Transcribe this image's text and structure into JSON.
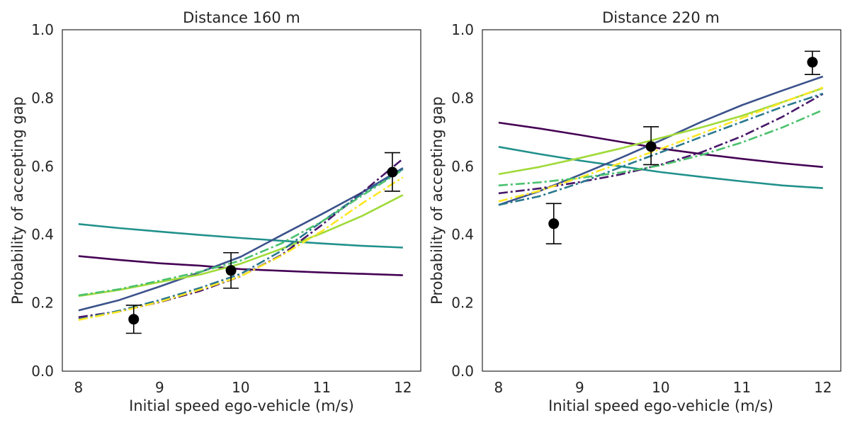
{
  "chart_data": [
    {
      "type": "line",
      "title": "Distance 160 m",
      "xlabel": "Initial speed ego-vehicle (m/s)",
      "ylabel": "Probability of accepting gap",
      "xlim": [
        7.8,
        12.22
      ],
      "ylim": [
        0.0,
        1.0
      ],
      "xticks": [
        "8",
        "9",
        "10",
        "11",
        "12"
      ],
      "yticks": [
        "0.0",
        "0.2",
        "0.4",
        "0.6",
        "0.8",
        "1.0"
      ],
      "grid": false,
      "legend": "none",
      "x": [
        8,
        8.5,
        9,
        9.5,
        10,
        10.5,
        11,
        11.5,
        12
      ],
      "series": [
        {
          "color": "#440154",
          "style": "solid",
          "values": [
            0.337,
            0.326,
            0.316,
            0.309,
            0.299,
            0.294,
            0.289,
            0.285,
            0.281
          ]
        },
        {
          "color": "#21918c",
          "style": "solid",
          "values": [
            0.431,
            0.419,
            0.409,
            0.399,
            0.39,
            0.382,
            0.374,
            0.367,
            0.362
          ]
        },
        {
          "color": "#3b528b",
          "style": "solid",
          "values": [
            0.178,
            0.208,
            0.248,
            0.29,
            0.335,
            0.398,
            0.46,
            0.524,
            0.595
          ]
        },
        {
          "color": "#a0da39",
          "style": "solid",
          "values": [
            0.22,
            0.238,
            0.261,
            0.283,
            0.315,
            0.358,
            0.404,
            0.455,
            0.516
          ]
        },
        {
          "color": "#48186a",
          "style": "dashdot",
          "values": [
            0.158,
            0.175,
            0.202,
            0.235,
            0.278,
            0.34,
            0.428,
            0.524,
            0.622
          ]
        },
        {
          "color": "#2a788e",
          "style": "dashdot",
          "values": [
            0.152,
            0.177,
            0.208,
            0.244,
            0.285,
            0.352,
            0.438,
            0.52,
            0.592
          ]
        },
        {
          "color": "#4ac16d",
          "style": "dashdot",
          "values": [
            0.222,
            0.24,
            0.265,
            0.291,
            0.324,
            0.374,
            0.438,
            0.515,
            0.59
          ]
        },
        {
          "color": "#fde725",
          "style": "dashdot",
          "values": [
            0.15,
            0.174,
            0.203,
            0.239,
            0.278,
            0.338,
            0.41,
            0.492,
            0.568
          ]
        }
      ],
      "observed": {
        "x": [
          8.68,
          9.88,
          11.87
        ],
        "y": [
          0.152,
          0.295,
          0.583
        ],
        "err_low": [
          0.111,
          0.243,
          0.527
        ],
        "err_high": [
          0.193,
          0.347,
          0.64
        ]
      }
    },
    {
      "type": "line",
      "title": "Distance 220 m",
      "xlabel": "Initial speed ego-vehicle (m/s)",
      "ylabel": "Probability of accepting gap",
      "xlim": [
        7.8,
        12.22
      ],
      "ylim": [
        0.0,
        1.0
      ],
      "xticks": [
        "8",
        "9",
        "10",
        "11",
        "12"
      ],
      "yticks": [
        "0.0",
        "0.2",
        "0.4",
        "0.6",
        "0.8",
        "1.0"
      ],
      "grid": false,
      "legend": "none",
      "x": [
        8,
        8.5,
        9,
        9.5,
        10,
        10.5,
        11,
        11.5,
        12
      ],
      "series": [
        {
          "color": "#440154",
          "style": "solid",
          "values": [
            0.728,
            0.711,
            0.692,
            0.672,
            0.652,
            0.636,
            0.622,
            0.609,
            0.598
          ]
        },
        {
          "color": "#21918c",
          "style": "solid",
          "values": [
            0.657,
            0.636,
            0.617,
            0.6,
            0.583,
            0.569,
            0.556,
            0.544,
            0.536
          ]
        },
        {
          "color": "#3b528b",
          "style": "solid",
          "values": [
            0.487,
            0.527,
            0.575,
            0.624,
            0.676,
            0.73,
            0.779,
            0.822,
            0.863
          ]
        },
        {
          "color": "#a0da39",
          "style": "solid",
          "values": [
            0.577,
            0.598,
            0.624,
            0.652,
            0.683,
            0.714,
            0.748,
            0.788,
            0.829
          ]
        },
        {
          "color": "#48186a",
          "style": "dashdot",
          "values": [
            0.521,
            0.535,
            0.554,
            0.576,
            0.605,
            0.641,
            0.688,
            0.745,
            0.812
          ]
        },
        {
          "color": "#2a788e",
          "style": "dashdot",
          "values": [
            0.487,
            0.512,
            0.551,
            0.597,
            0.641,
            0.686,
            0.73,
            0.774,
            0.813
          ]
        },
        {
          "color": "#4ac16d",
          "style": "dashdot",
          "values": [
            0.544,
            0.553,
            0.566,
            0.582,
            0.603,
            0.633,
            0.67,
            0.714,
            0.765
          ]
        },
        {
          "color": "#fde725",
          "style": "dashdot",
          "values": [
            0.497,
            0.528,
            0.567,
            0.609,
            0.651,
            0.696,
            0.741,
            0.787,
            0.831
          ]
        }
      ],
      "observed": {
        "x": [
          8.68,
          9.88,
          11.87
        ],
        "y": [
          0.432,
          0.658,
          0.905
        ],
        "err_low": [
          0.373,
          0.605,
          0.869
        ],
        "err_high": [
          0.491,
          0.716,
          0.937
        ]
      }
    }
  ]
}
